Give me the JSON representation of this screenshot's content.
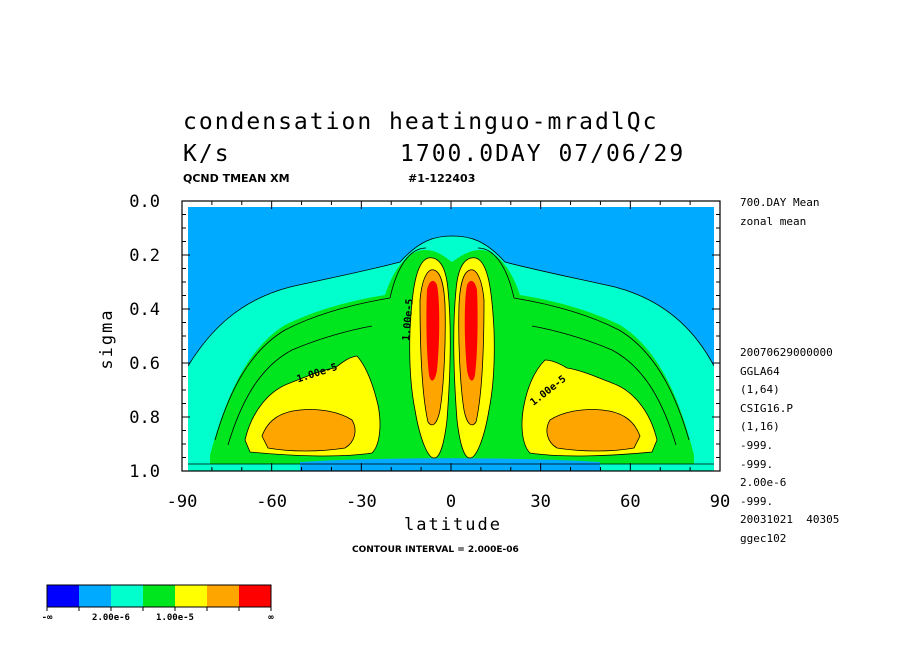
{
  "header": {
    "title_line1": "condensation heatinguo-mradlQc",
    "units": "K/s",
    "date_stamp": "1700.0DAY 07/06/29",
    "var_code": "QCND TMEAN XM",
    "run_id": "#1-122403"
  },
  "side_info": {
    "mean_label": "700.DAY Mean",
    "zonal_label": "zonal mean",
    "lines": [
      "20070629000000",
      "GGLA64",
      "(1,64)",
      "CSIG16.P",
      "(1,16)",
      "-999.",
      "-999.",
      "2.00e-6",
      "-999.",
      "20031021  40305",
      "ggec102"
    ]
  },
  "footer": {
    "contour_interval": "CONTOUR INTERVAL = 2.000E-06"
  },
  "colorbar": {
    "colors": [
      "#0000ff",
      "#00aaff",
      "#00ffcc",
      "#00e61e",
      "#ffff00",
      "#ffa500",
      "#ff0000"
    ],
    "labels": [
      "-∞",
      "2.00e-6",
      "1.00e-5",
      "∞"
    ]
  },
  "chart_data": {
    "type": "contour",
    "title": "condensation heatinguo-mradlQc",
    "xlabel": "latitude",
    "ylabel": "sigma",
    "xlim": [
      -90,
      90
    ],
    "ylim": [
      1.0,
      0.0
    ],
    "x_ticks": [
      "-90",
      "-60",
      "-30",
      "0",
      "30",
      "60",
      "90"
    ],
    "y_ticks": [
      "0.0",
      "0.2",
      "0.4",
      "0.6",
      "0.8",
      "1.0"
    ],
    "contour_interval": 2e-06,
    "contour_labels": [
      "1.00e-5",
      "1.00e-5",
      "1.00e-5"
    ],
    "colors": {
      "below_0": "#0000ff",
      "0_to_2e-6": "#00aaff",
      "2e-6_to_4e-6": "#00ffcc",
      "4e-6_to_1e-5": "#00e61e",
      "1e-5_to_1.4e-5": "#ffff00",
      "1.4e-5_to_2e-5": "#ffa500",
      "above_2e-5": "#ff0000"
    }
  }
}
